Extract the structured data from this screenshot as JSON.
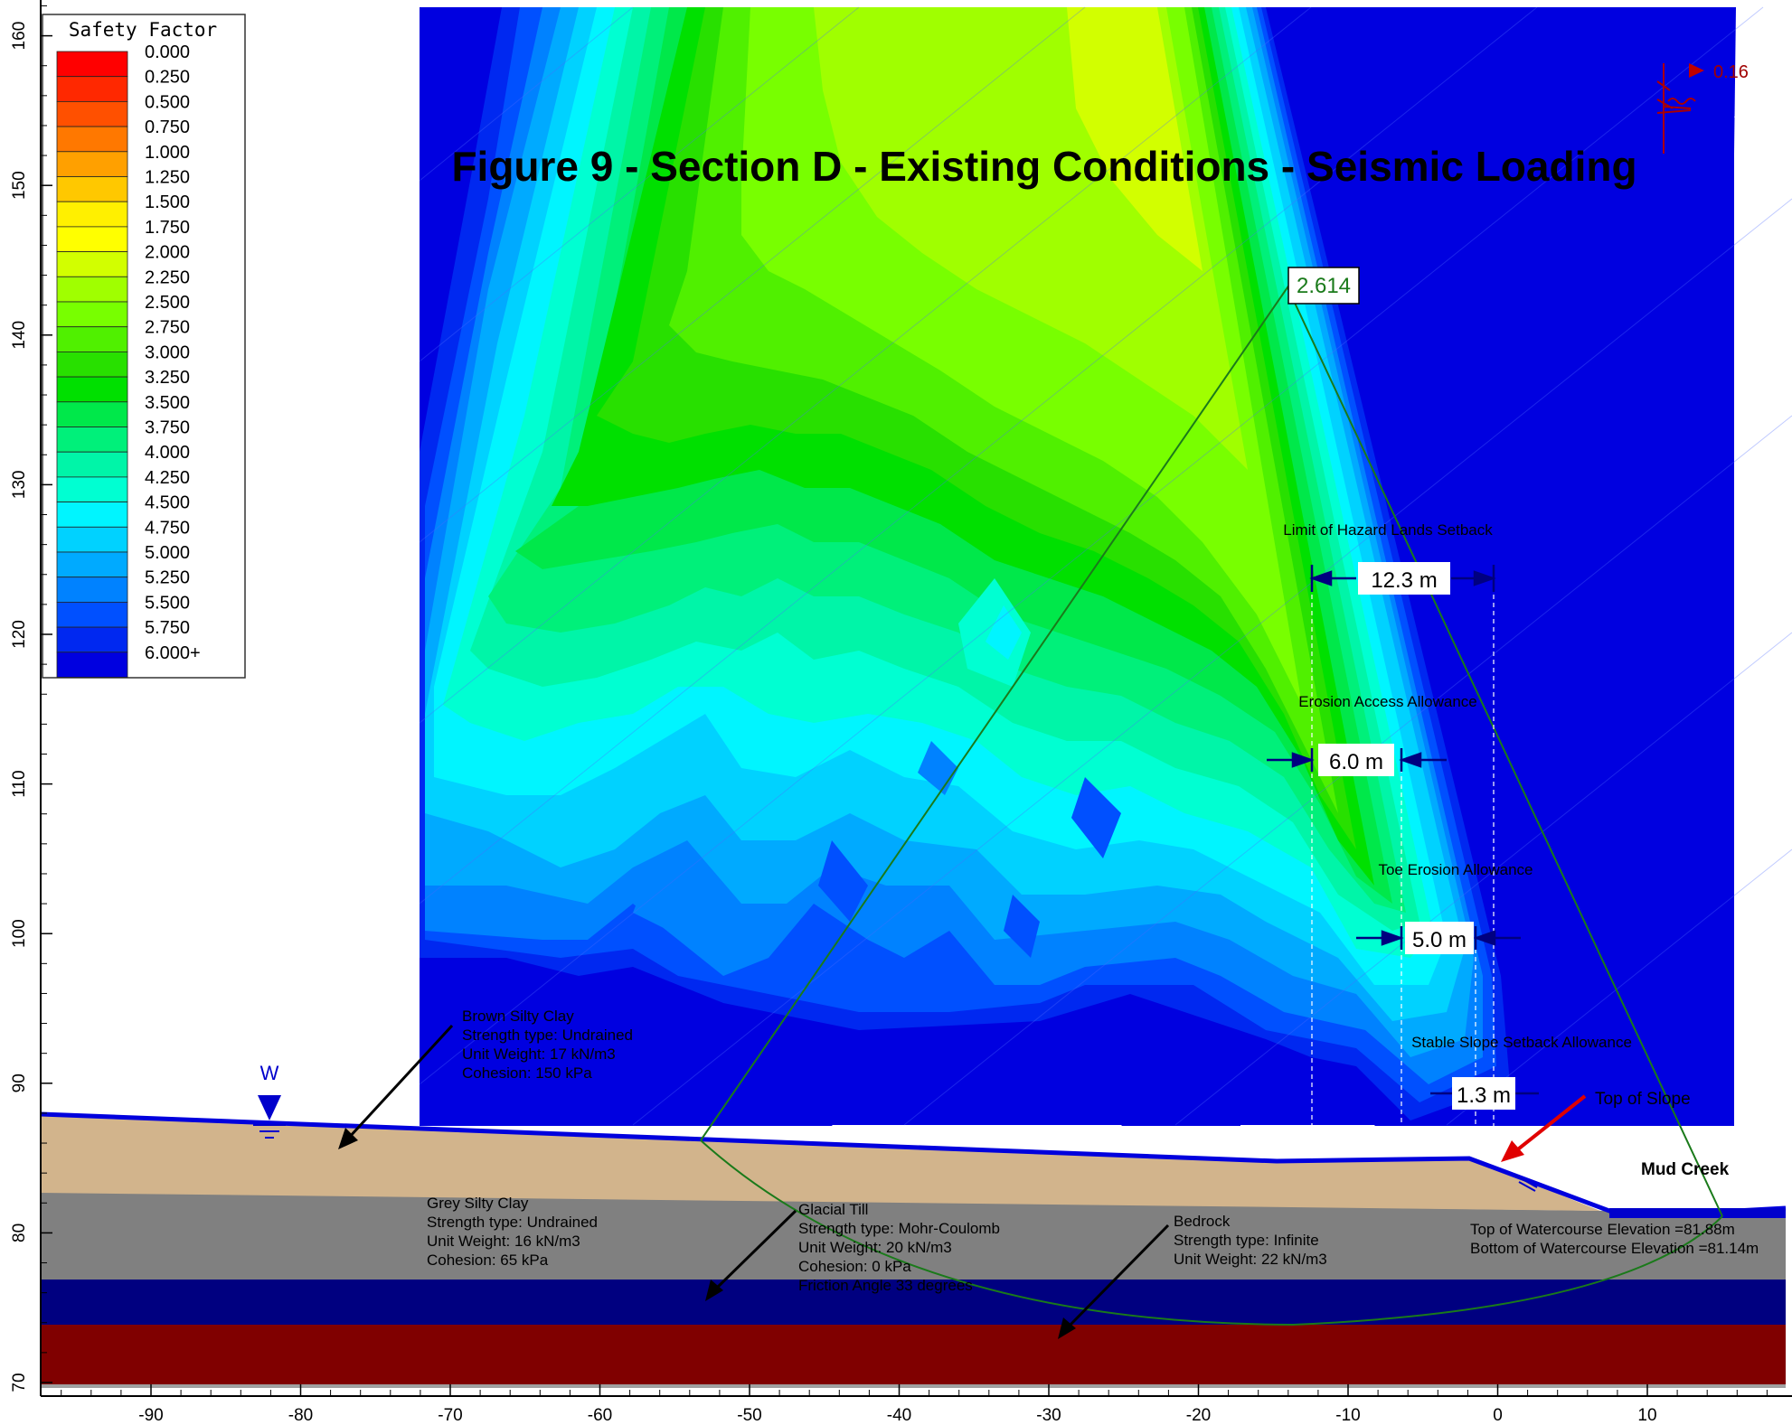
{
  "title": "Figure 9 - Section D - Existing Conditions - Seismic Loading",
  "legend": {
    "title": "Safety Factor",
    "entries": [
      {
        "label": "0.000",
        "color": "#ff0000"
      },
      {
        "label": "0.250",
        "color": "#ff2800"
      },
      {
        "label": "0.500",
        "color": "#ff5000"
      },
      {
        "label": "0.750",
        "color": "#ff7800"
      },
      {
        "label": "1.000",
        "color": "#ffa000"
      },
      {
        "label": "1.250",
        "color": "#ffc800"
      },
      {
        "label": "1.500",
        "color": "#fff000"
      },
      {
        "label": "1.750",
        "color": "#ffff00"
      },
      {
        "label": "2.000",
        "color": "#d2ff00"
      },
      {
        "label": "2.250",
        "color": "#a0ff00"
      },
      {
        "label": "2.500",
        "color": "#78ff00"
      },
      {
        "label": "2.750",
        "color": "#50f000"
      },
      {
        "label": "3.000",
        "color": "#28e000"
      },
      {
        "label": "3.250",
        "color": "#00e000"
      },
      {
        "label": "3.500",
        "color": "#00e84a"
      },
      {
        "label": "3.750",
        "color": "#00f07a"
      },
      {
        "label": "4.000",
        "color": "#00f5a8"
      },
      {
        "label": "4.250",
        "color": "#00ffd2"
      },
      {
        "label": "4.500",
        "color": "#00f5ff"
      },
      {
        "label": "4.750",
        "color": "#00d2ff"
      },
      {
        "label": "5.000",
        "color": "#00aaff"
      },
      {
        "label": "5.250",
        "color": "#0082ff"
      },
      {
        "label": "5.500",
        "color": "#0050ff"
      },
      {
        "label": "5.750",
        "color": "#0028f0"
      },
      {
        "label": "6.000+",
        "color": "#0000e0"
      }
    ]
  },
  "axes": {
    "x_ticks": [
      "-90",
      "-80",
      "-70",
      "-60",
      "-50",
      "-40",
      "-30",
      "-20",
      "-10",
      "0",
      "10"
    ],
    "y_ticks": [
      "70",
      "80",
      "90",
      "100",
      "110",
      "120",
      "130",
      "140",
      "150",
      "160"
    ]
  },
  "fos_label": "2.614",
  "seismic_label": "0.16",
  "water_label": "W",
  "dimensions": {
    "hazard": {
      "title": "Limit of Hazard Lands Setback",
      "value": "12.3 m"
    },
    "erosion_access": {
      "title": "Erosion Access Allowance",
      "value": "6.0 m"
    },
    "toe_erosion": {
      "title": "Toe Erosion Allowance",
      "value": "5.0 m"
    },
    "stable_slope": {
      "title": "Stable Slope Setback Allowance",
      "value": "1.3 m"
    }
  },
  "top_of_slope": "Top of Slope",
  "mud_creek": "Mud Creek",
  "watercourse": {
    "top": "Top of Watercourse Elevation =81.88m",
    "bottom": "Bottom of Watercourse Elevation =81.14m"
  },
  "materials": {
    "brown": {
      "name": "Brown Silty Clay",
      "l1": "Strength type: Undrained",
      "l2": "Unit Weight: 17 kN/m3",
      "l3": "Cohesion: 150 kPa",
      "color": "#d2b48c"
    },
    "grey": {
      "name": "Grey Silty Clay",
      "l1": "Strength type: Undrained",
      "l2": "Unit Weight: 16 kN/m3",
      "l3": "Cohesion: 65 kPa",
      "color": "#808080"
    },
    "till": {
      "name": "Glacial Till",
      "l1": "Strength type: Mohr-Coulomb",
      "l2": "Unit Weight: 20 kN/m3",
      "l3": "Cohesion: 0 kPa",
      "l4": "Friction Angle 33 degrees",
      "color": "#000080"
    },
    "bedrock": {
      "name": "Bedrock",
      "l1": "Strength type: Infinite",
      "l2": "Unit Weight: 22 kN/m3",
      "color": "#800000"
    }
  }
}
